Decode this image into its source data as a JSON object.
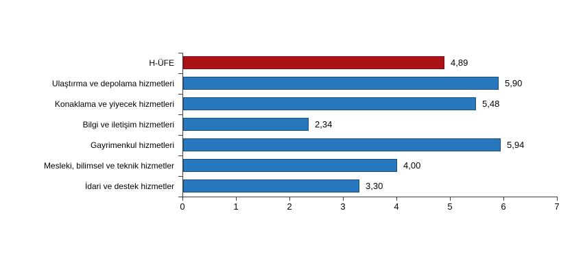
{
  "chart_data": {
    "type": "bar",
    "orientation": "horizontal",
    "title": "",
    "categories": [
      "H-ÜFE",
      "Ulaştırma ve depolama hizmetleri",
      "Konaklama ve yiyecek hizmetleri",
      "Bilgi ve iletişim hizmetleri",
      "Gayrimenkul hizmetleri",
      "Mesleki, bilimsel ve teknik hizmetler",
      "İdari ve destek hizmetler"
    ],
    "values": [
      4.89,
      5.9,
      5.48,
      2.34,
      5.94,
      4.0,
      3.3
    ],
    "value_labels": [
      "4,89",
      "5,90",
      "5,48",
      "2,34",
      "5,94",
      "4,00",
      "3,30"
    ],
    "x_ticks": [
      "0",
      "1",
      "2",
      "3",
      "4",
      "5",
      "6",
      "7"
    ],
    "xlim": [
      0,
      7
    ],
    "grid": false,
    "legend": "none",
    "colors": {
      "highlight_fill": "#ab1116",
      "highlight_border": "#7e0c10",
      "default_fill": "#2878be",
      "default_border": "#1b4f79",
      "axis": "#3f3f3f",
      "text": "#000000",
      "background": "#ffffff"
    }
  }
}
